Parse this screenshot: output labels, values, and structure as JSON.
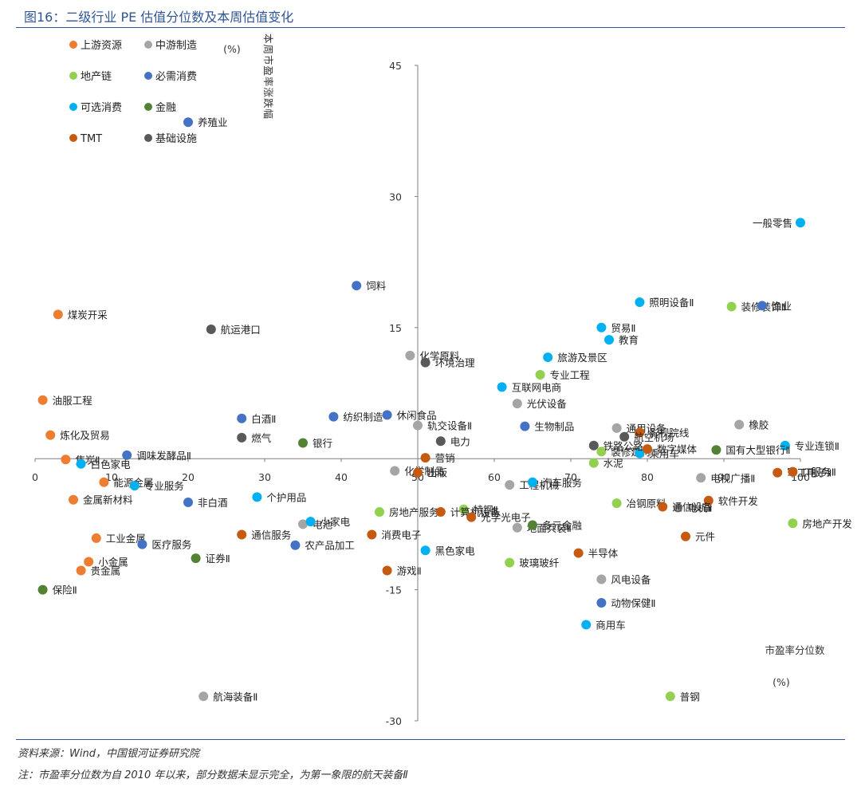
{
  "header": {
    "title": "图16：二级行业 PE 估值分位数及本周估值变化"
  },
  "footer": {
    "source": "资料来源：Wind，中国银河证券研究院",
    "note": "注：市盈率分位数为自 2010 年以来，部分数据未显示完全，为第一象限的航天装备Ⅱ"
  },
  "chart_data": {
    "type": "scatter",
    "title": "图16：二级行业 PE 估值分位数及本周估值变化",
    "xlabel": "市盈率分位数",
    "xunit": "(%)",
    "ylabel": "本周市盈率涨跌幅",
    "yunit": "(%)",
    "xlim": [
      0,
      100
    ],
    "ylim": [
      -30,
      45
    ],
    "xticks": [
      0,
      10,
      20,
      30,
      40,
      50,
      60,
      70,
      80,
      90,
      100
    ],
    "yticks": [
      -30,
      -15,
      15,
      30,
      45
    ],
    "legend_position": "top-left",
    "series": [
      {
        "name": "上游资源",
        "color": "#ed7d31",
        "points": [
          {
            "label": "煤炭开采",
            "x": 3,
            "y": 16.5
          },
          {
            "label": "油服工程",
            "x": 1,
            "y": 6.7
          },
          {
            "label": "炼化及贸易",
            "x": 2,
            "y": 2.7
          },
          {
            "label": "焦炭Ⅱ",
            "x": 4,
            "y": -0.1
          },
          {
            "label": "能源金属",
            "x": 9,
            "y": -2.7
          },
          {
            "label": "金属新材料",
            "x": 5,
            "y": -4.7
          },
          {
            "label": "工业金属",
            "x": 8,
            "y": -9.1
          },
          {
            "label": "小金属",
            "x": 7,
            "y": -11.8
          },
          {
            "label": "贵金属",
            "x": 6,
            "y": -12.8
          }
        ]
      },
      {
        "name": "中游制造",
        "color": "#a5a5a5",
        "points": [
          {
            "label": "化学原料",
            "x": 49,
            "y": 11.8
          },
          {
            "label": "轨交设备Ⅱ",
            "x": 50,
            "y": 3.8
          },
          {
            "label": "化学制品",
            "x": 47,
            "y": -1.4
          },
          {
            "label": "工程机械",
            "x": 62,
            "y": -3.0
          },
          {
            "label": "电池",
            "x": 35,
            "y": -7.5
          },
          {
            "label": "地面兵装Ⅱ",
            "x": 63,
            "y": -7.9
          },
          {
            "label": "通用设备",
            "x": 76,
            "y": 3.5
          },
          {
            "label": "风电设备",
            "x": 74,
            "y": -13.8
          },
          {
            "label": "电视广播Ⅱ",
            "x": 87,
            "y": -2.2
          },
          {
            "label": "电机Ⅱ",
            "x": 84,
            "y": -5.6
          },
          {
            "label": "橡胶",
            "x": 92,
            "y": 3.9
          },
          {
            "label": "光伏设备",
            "x": 63,
            "y": 6.3
          },
          {
            "label": "航海装备Ⅱ",
            "x": 22,
            "y": -27.2
          }
        ]
      },
      {
        "name": "地产链",
        "color": "#92d050",
        "points": [
          {
            "label": "专业工程",
            "x": 66,
            "y": 9.6
          },
          {
            "label": "装修装饰Ⅱ",
            "x": 91,
            "y": 17.4
          },
          {
            "label": "房地产服务",
            "x": 45,
            "y": -6.1
          },
          {
            "label": "特钢Ⅱ",
            "x": 56,
            "y": -5.8
          },
          {
            "label": "玻璃玻纤",
            "x": 62,
            "y": -11.9
          },
          {
            "label": "水泥",
            "x": 73,
            "y": -0.5
          },
          {
            "label": "装修建材",
            "x": 74,
            "y": 0.8
          },
          {
            "label": "冶钢原料",
            "x": 76,
            "y": -5.1
          },
          {
            "label": "房地产开发",
            "x": 99,
            "y": -7.4
          },
          {
            "label": "普钢",
            "x": 83,
            "y": -27.2
          }
        ]
      },
      {
        "name": "必需消费",
        "color": "#4472c4",
        "points": [
          {
            "label": "养殖业",
            "x": 20,
            "y": 38.5
          },
          {
            "label": "饲料",
            "x": 42,
            "y": 19.8
          },
          {
            "label": "白酒Ⅱ",
            "x": 27,
            "y": 4.6
          },
          {
            "label": "纺织制造",
            "x": 39,
            "y": 4.8
          },
          {
            "label": "休闲食品",
            "x": 46,
            "y": 5.0
          },
          {
            "label": "调味发酵品Ⅱ",
            "x": 12,
            "y": 0.4
          },
          {
            "label": "非白酒",
            "x": 20,
            "y": -5.0
          },
          {
            "label": "医疗服务",
            "x": 14,
            "y": -9.8
          },
          {
            "label": "农产品加工",
            "x": 34,
            "y": -9.9
          },
          {
            "label": "生物制品",
            "x": 64,
            "y": 3.7
          },
          {
            "label": "渔业",
            "x": 95,
            "y": 17.5
          },
          {
            "label": "动物保健Ⅱ",
            "x": 74,
            "y": -16.5
          }
        ]
      },
      {
        "name": "可选消费",
        "color": "#00b0f0",
        "points": [
          {
            "label": "一般零售",
            "x": 100,
            "y": 27.0
          },
          {
            "label": "照明设备Ⅱ",
            "x": 79,
            "y": 17.9
          },
          {
            "label": "贸易Ⅱ",
            "x": 74,
            "y": 15.0
          },
          {
            "label": "教育",
            "x": 75,
            "y": 13.6
          },
          {
            "label": "旅游及景区",
            "x": 67,
            "y": 11.6
          },
          {
            "label": "互联网电商",
            "x": 61,
            "y": 8.2
          },
          {
            "label": "专业服务",
            "x": 13,
            "y": -3.1
          },
          {
            "label": "个护用品",
            "x": 29,
            "y": -4.4
          },
          {
            "label": "小家电",
            "x": 36,
            "y": -7.2
          },
          {
            "label": "黑色家电",
            "x": 51,
            "y": -10.5
          },
          {
            "label": "汽车服务",
            "x": 65,
            "y": -2.7
          },
          {
            "label": "白色家电",
            "x": 6,
            "y": -0.6
          },
          {
            "label": "乘用车",
            "x": 79,
            "y": 0.6
          },
          {
            "label": "商用车",
            "x": 72,
            "y": -19.0
          },
          {
            "label": "专业连锁Ⅱ",
            "x": 98,
            "y": 1.5
          }
        ]
      },
      {
        "name": "金融",
        "color": "#548235",
        "points": [
          {
            "label": "保险Ⅱ",
            "x": 1,
            "y": -15.0
          },
          {
            "label": "证券Ⅱ",
            "x": 21,
            "y": -11.4
          },
          {
            "label": "多元金融",
            "x": 65,
            "y": -7.6
          },
          {
            "label": "国有大型银行Ⅱ",
            "x": 89,
            "y": 1.0
          },
          {
            "label": "银行",
            "x": 35,
            "y": 1.8
          }
        ]
      },
      {
        "name": "TMT",
        "color": "#c55a11",
        "points": [
          {
            "label": "游戏Ⅱ",
            "x": 46,
            "y": -12.8
          },
          {
            "label": "通信服务",
            "x": 27,
            "y": -8.7
          },
          {
            "label": "消费电子",
            "x": 44,
            "y": -8.7
          },
          {
            "label": "计算机设备",
            "x": 53,
            "y": -6.1
          },
          {
            "label": "光学光电子",
            "x": 57,
            "y": -6.7
          },
          {
            "label": "半导体",
            "x": 71,
            "y": -10.8
          },
          {
            "label": "影视院线",
            "x": 79,
            "y": 3.0
          },
          {
            "label": "数字媒体",
            "x": 80,
            "y": 1.1
          },
          {
            "label": "元件",
            "x": 85,
            "y": -8.9
          },
          {
            "label": "软件开发",
            "x": 88,
            "y": -4.8
          },
          {
            "label": "军工电子Ⅱ",
            "x": 97,
            "y": -1.6
          },
          {
            "label": "IT服务Ⅱ",
            "x": 99,
            "y": -1.5
          },
          {
            "label": "通信设备",
            "x": 82,
            "y": -5.5
          },
          {
            "label": "出版",
            "x": 50,
            "y": -1.6
          },
          {
            "label": "营销",
            "x": 51,
            "y": 0.1
          }
        ]
      },
      {
        "name": "基础设施",
        "color": "#595959",
        "points": [
          {
            "label": "航运港口",
            "x": 23,
            "y": 14.8
          },
          {
            "label": "环境治理",
            "x": 51,
            "y": 11.0
          },
          {
            "label": "燃气",
            "x": 27,
            "y": 2.4
          },
          {
            "label": "电力",
            "x": 53,
            "y": 2.0
          },
          {
            "label": "航空机场",
            "x": 77,
            "y": 2.5
          },
          {
            "label": "铁路公路",
            "x": 73,
            "y": 1.5
          }
        ]
      }
    ]
  }
}
